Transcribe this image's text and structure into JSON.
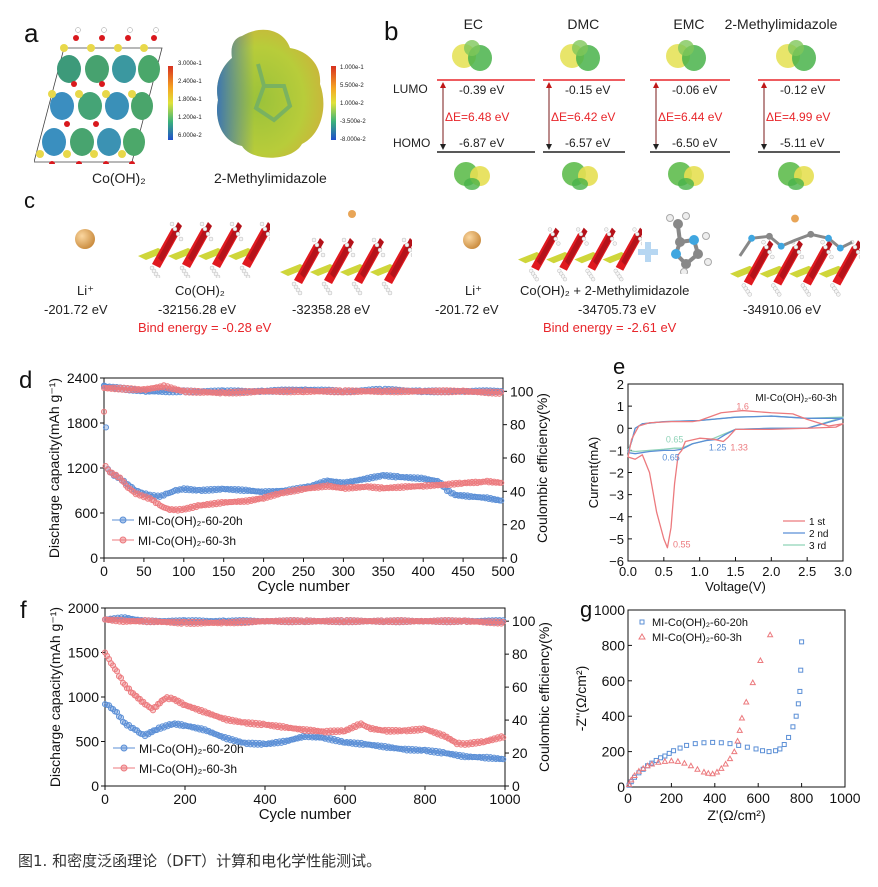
{
  "panels": {
    "a": {
      "label": "a",
      "left_caption": "Co(OH)₂",
      "right_caption": "2-Methylimidazole",
      "left_colorbar": [
        "3.000e-1",
        "2.400e-1",
        "1.800e-1",
        "1.200e-1",
        "6.000e-2"
      ],
      "right_colorbar": [
        "1.000e-1",
        "5.500e-2",
        "1.000e-2",
        "-3.500e-2",
        "-8.000e-2"
      ]
    },
    "b": {
      "label": "b",
      "lumo_label": "LUMO",
      "homo_label": "HOMO",
      "molecules": [
        {
          "name": "EC",
          "lumo": "-0.39 eV",
          "homo": "-6.87 eV",
          "gap": "ΔE=6.48 eV"
        },
        {
          "name": "DMC",
          "lumo": "-0.15 eV",
          "homo": "-6.57 eV",
          "gap": "ΔE=6.42 eV"
        },
        {
          "name": "EMC",
          "lumo": "-0.06 eV",
          "homo": "-6.50 eV",
          "gap": "ΔE=6.44 eV"
        },
        {
          "name": "2-Methylimidazole",
          "lumo": "-0.12 eV",
          "homo": "-5.11 eV",
          "gap": "ΔE=4.99 eV"
        }
      ]
    },
    "c": {
      "label": "c",
      "items": [
        {
          "name": "Li⁺",
          "energy": "-201.72 eV"
        },
        {
          "name": "Co(OH)₂",
          "energy": "-32156.28 eV"
        },
        {
          "name": "",
          "energy": "-32358.28 eV"
        },
        {
          "name": "Li⁺",
          "energy": "-201.72 eV"
        },
        {
          "name": "Co(OH)₂ + 2-Methylimidazole",
          "energy": "-34705.73 eV"
        },
        {
          "name": "",
          "energy": "-34910.06 eV"
        }
      ],
      "bind1": "Bind energy = -0.28 eV",
      "bind2": "Bind energy = -2.61 eV"
    }
  },
  "caption": "图1. 和密度泛函理论（DFT）计算和电化学性能测试。",
  "colors": {
    "blue": "#5b8fd6",
    "red": "#ec7a7e",
    "green": "#8fd3b8",
    "annot_red": "#e8262b"
  },
  "chart_data": [
    {
      "id": "d",
      "type": "scatter",
      "title": "",
      "panel_label": "d",
      "xlabel": "Cycle number",
      "ylabel": "Discharge capacity(mAh g⁻¹)",
      "y2label": "Coulombic efficiency(%)",
      "xlim": [
        0,
        500
      ],
      "ylim": [
        0,
        2400
      ],
      "y2lim": [
        0,
        108
      ],
      "xticks": [
        0,
        50,
        100,
        150,
        200,
        250,
        300,
        350,
        400,
        450,
        500
      ],
      "yticks": [
        0,
        600,
        1200,
        1800,
        2400
      ],
      "y2ticks": [
        0,
        20,
        40,
        60,
        80,
        100
      ],
      "legend": "bottom-left",
      "series": [
        {
          "name": "MI-Co(OH)₂-60-20h",
          "color": "#5b8fd6",
          "axis": "capacity",
          "x": [
            0,
            5,
            10,
            20,
            30,
            40,
            50,
            60,
            70,
            80,
            90,
            100,
            120,
            150,
            180,
            200,
            230,
            260,
            280,
            300,
            330,
            350,
            370,
            400,
            420,
            430,
            440,
            460,
            480,
            500
          ],
          "y": [
            2300,
            1180,
            1120,
            1060,
            980,
            900,
            860,
            830,
            820,
            860,
            900,
            920,
            900,
            920,
            900,
            880,
            900,
            960,
            1030,
            1000,
            1060,
            1100,
            1080,
            1060,
            1020,
            900,
            840,
            820,
            800,
            760
          ]
        },
        {
          "name": "MI-Co(OH)₂-60-3h",
          "color": "#ec7a7e",
          "axis": "capacity",
          "x": [
            0,
            2,
            5,
            10,
            20,
            30,
            40,
            50,
            60,
            70,
            80,
            90,
            100,
            120,
            150,
            180,
            200,
            220,
            250,
            280,
            300,
            330,
            350,
            380,
            400,
            430,
            450,
            470,
            480,
            500
          ],
          "y": [
            1950,
            1220,
            1170,
            1130,
            1070,
            940,
            860,
            820,
            780,
            700,
            650,
            640,
            650,
            700,
            740,
            760,
            800,
            860,
            920,
            960,
            930,
            950,
            930,
            950,
            960,
            980,
            1000,
            1010,
            1020,
            1000
          ]
        },
        {
          "name": "MI-Co(OH)₂-60-20h CE",
          "color": "#5b8fd6",
          "axis": "efficiency",
          "x": [
            0,
            50,
            100,
            150,
            200,
            250,
            300,
            350,
            400,
            450,
            500
          ],
          "y": [
            103,
            100,
            100,
            100,
            100,
            101,
            100,
            101,
            100,
            100,
            100
          ]
        },
        {
          "name": "MI-Co(OH)₂-60-3h CE",
          "color": "#ec7a7e",
          "axis": "efficiency",
          "x": [
            0,
            50,
            75,
            100,
            150,
            200,
            250,
            300,
            350,
            400,
            450,
            500
          ],
          "y": [
            102,
            101,
            103,
            100,
            99,
            100,
            100,
            100,
            100,
            100,
            100,
            99
          ]
        }
      ]
    },
    {
      "id": "e",
      "type": "line",
      "panel_label": "e",
      "title": "MI-Co(OH)₂-60-3h",
      "xlabel": "Voltage(V)",
      "ylabel": "Current(mA)",
      "xlim": [
        0,
        3.0
      ],
      "ylim": [
        -6,
        2
      ],
      "xticks": [
        0.0,
        0.5,
        1.0,
        1.5,
        2.0,
        2.5,
        3.0
      ],
      "yticks": [
        -6,
        -5,
        -4,
        -3,
        -2,
        -1,
        0,
        1,
        2
      ],
      "legend": "bottom-right",
      "annotations": [
        {
          "text": "1.6",
          "x": 1.6,
          "y": 0.85,
          "color": "#ec7a7e"
        },
        {
          "text": "0.65",
          "x": 0.65,
          "y": -0.65,
          "color": "#8fd3b8"
        },
        {
          "text": "0.65",
          "x": 0.6,
          "y": -1.45,
          "color": "#5b8fd6"
        },
        {
          "text": "1.25",
          "x": 1.25,
          "y": -1.0,
          "color": "#5b8fd6"
        },
        {
          "text": "1.33",
          "x": 1.55,
          "y": -1.0,
          "color": "#ec7a7e"
        },
        {
          "text": "0.55",
          "x": 0.75,
          "y": -5.4,
          "color": "#ec7a7e"
        }
      ],
      "series": [
        {
          "name": "1 st",
          "color": "#ec7a7e",
          "x": [
            0.0,
            0.05,
            0.1,
            0.2,
            0.3,
            0.4,
            0.5,
            0.55,
            0.6,
            0.65,
            0.7,
            0.75,
            0.8,
            1.0,
            1.2,
            1.33,
            1.4,
            1.5,
            2.0,
            2.5,
            2.9,
            3.0,
            2.8,
            2.5,
            2.3,
            2.0,
            1.6,
            1.3,
            1.0,
            0.9,
            0.6,
            0.3,
            0.15,
            0.05,
            0.0
          ],
          "y": [
            -1.3,
            -1.35,
            -1.4,
            -1.2,
            -2.0,
            -3.8,
            -5.0,
            -5.4,
            -4.5,
            -2.5,
            -1.2,
            -1.0,
            -0.6,
            -0.45,
            -0.5,
            -0.6,
            -0.4,
            -0.05,
            -0.05,
            0.0,
            0.05,
            0.2,
            0.1,
            0.4,
            0.65,
            0.7,
            0.8,
            0.7,
            0.35,
            0.3,
            0.3,
            0.25,
            0.1,
            -0.5,
            -1.3
          ]
        },
        {
          "name": "2 nd",
          "color": "#5b8fd6",
          "x": [
            0.0,
            0.1,
            0.3,
            0.5,
            0.65,
            0.75,
            0.9,
            1.1,
            1.25,
            1.35,
            1.5,
            2.0,
            2.5,
            3.0,
            2.5,
            2.0,
            1.5,
            1.0,
            0.5,
            0.2,
            0.1,
            0.05,
            0.0
          ],
          "y": [
            -1.1,
            -1.15,
            -1.05,
            -1.0,
            -1.0,
            -0.95,
            -0.7,
            -0.55,
            -0.5,
            -0.3,
            -0.05,
            0.0,
            0.0,
            0.45,
            0.45,
            0.55,
            0.5,
            0.35,
            0.3,
            0.2,
            0.0,
            -0.6,
            -1.1
          ]
        },
        {
          "name": "3 rd",
          "color": "#8fd3b8",
          "x": [
            0.0,
            0.1,
            0.3,
            0.5,
            0.65,
            0.75,
            0.9,
            1.1,
            1.2,
            1.35,
            1.5,
            2.0,
            2.5,
            3.0,
            2.5,
            2.0,
            1.5,
            1.0,
            0.5,
            0.2,
            0.1,
            0.05,
            0.0
          ],
          "y": [
            -1.0,
            -1.05,
            -1.0,
            -0.95,
            -0.9,
            -0.9,
            -0.7,
            -0.55,
            -0.45,
            -0.25,
            -0.05,
            0.0,
            0.0,
            0.5,
            0.45,
            0.55,
            0.5,
            0.35,
            0.3,
            0.2,
            0.0,
            -0.6,
            -1.0
          ]
        }
      ]
    },
    {
      "id": "f",
      "type": "scatter",
      "panel_label": "f",
      "title": "",
      "xlabel": "Cycle number",
      "ylabel": "Discharge capacity(mAh g⁻¹)",
      "y2label": "Coulombic efficiency(%)",
      "xlim": [
        0,
        1000
      ],
      "ylim": [
        0,
        2000
      ],
      "y2lim": [
        0,
        108
      ],
      "xticks": [
        0,
        200,
        400,
        600,
        800,
        1000
      ],
      "yticks": [
        0,
        500,
        1000,
        1500,
        2000
      ],
      "y2ticks": [
        0,
        20,
        40,
        60,
        80,
        100
      ],
      "legend": "bottom-left",
      "series": [
        {
          "name": "MI-Co(OH)₂-60-20h",
          "color": "#5b8fd6",
          "axis": "capacity",
          "x": [
            0,
            10,
            30,
            50,
            70,
            90,
            100,
            130,
            170,
            200,
            250,
            300,
            350,
            400,
            450,
            500,
            550,
            600,
            650,
            700,
            750,
            800,
            850,
            900,
            950,
            1000
          ],
          "y": [
            920,
            900,
            820,
            700,
            650,
            590,
            570,
            640,
            700,
            680,
            630,
            540,
            480,
            470,
            500,
            560,
            540,
            490,
            470,
            440,
            410,
            400,
            370,
            330,
            320,
            300
          ]
        },
        {
          "name": "MI-Co(OH)₂-60-3h",
          "color": "#ec7a7e",
          "axis": "capacity",
          "x": [
            0,
            10,
            30,
            50,
            70,
            100,
            120,
            150,
            170,
            200,
            250,
            300,
            350,
            400,
            450,
            500,
            550,
            600,
            640,
            660,
            700,
            750,
            800,
            850,
            880,
            900,
            950,
            1000
          ],
          "y": [
            1500,
            1420,
            1280,
            1130,
            1040,
            920,
            860,
            990,
            980,
            910,
            830,
            750,
            710,
            690,
            660,
            630,
            610,
            620,
            700,
            650,
            620,
            620,
            640,
            560,
            480,
            470,
            500,
            560
          ]
        },
        {
          "name": "MI-Co(OH)₂-60-20h CE",
          "color": "#5b8fd6",
          "axis": "efficiency",
          "x": [
            0,
            50,
            100,
            200,
            300,
            400,
            500,
            600,
            700,
            800,
            900,
            1000
          ],
          "y": [
            101,
            102,
            100,
            100,
            100,
            100,
            100,
            100,
            100,
            100,
            100,
            100
          ]
        },
        {
          "name": "MI-Co(OH)₂-60-3h CE",
          "color": "#ec7a7e",
          "axis": "efficiency",
          "x": [
            0,
            50,
            100,
            200,
            300,
            400,
            500,
            600,
            700,
            800,
            900,
            1000
          ],
          "y": [
            101,
            100,
            100,
            99,
            99,
            100,
            100,
            100,
            100,
            100,
            100,
            99
          ]
        }
      ]
    },
    {
      "id": "g",
      "type": "scatter",
      "panel_label": "g",
      "title": "",
      "xlabel": "Z'(Ω/cm²)",
      "ylabel": "-Z''(Ω/cm²)",
      "xlim": [
        0,
        1000
      ],
      "ylim": [
        0,
        1000
      ],
      "xticks": [
        0,
        200,
        400,
        600,
        800,
        1000
      ],
      "yticks": [
        0,
        200,
        400,
        600,
        800,
        1000
      ],
      "legend": "top-left",
      "series": [
        {
          "name": "MI-Co(OH)₂-60-20h",
          "color": "#5b8fd6",
          "marker": "square",
          "x": [
            5,
            15,
            30,
            50,
            70,
            90,
            110,
            130,
            150,
            170,
            190,
            210,
            240,
            270,
            310,
            350,
            390,
            430,
            470,
            510,
            550,
            590,
            620,
            650,
            680,
            700,
            720,
            740,
            760,
            775,
            785,
            792,
            796,
            800
          ],
          "y": [
            10,
            30,
            55,
            80,
            100,
            120,
            135,
            150,
            165,
            175,
            190,
            205,
            220,
            235,
            245,
            250,
            252,
            250,
            245,
            235,
            225,
            215,
            205,
            200,
            205,
            215,
            240,
            280,
            340,
            400,
            470,
            540,
            660,
            820
          ]
        },
        {
          "name": "MI-Co(OH)₂-60-3h",
          "color": "#ec7a7e",
          "marker": "triangle",
          "x": [
            5,
            15,
            30,
            50,
            70,
            90,
            110,
            140,
            170,
            200,
            230,
            260,
            290,
            320,
            350,
            370,
            390,
            410,
            430,
            450,
            470,
            490,
            505,
            515,
            525,
            545,
            575,
            610,
            655
          ],
          "y": [
            15,
            40,
            65,
            90,
            105,
            120,
            130,
            140,
            145,
            148,
            145,
            135,
            120,
            100,
            85,
            78,
            75,
            85,
            105,
            130,
            160,
            200,
            260,
            320,
            390,
            480,
            590,
            715,
            860
          ]
        }
      ]
    }
  ]
}
